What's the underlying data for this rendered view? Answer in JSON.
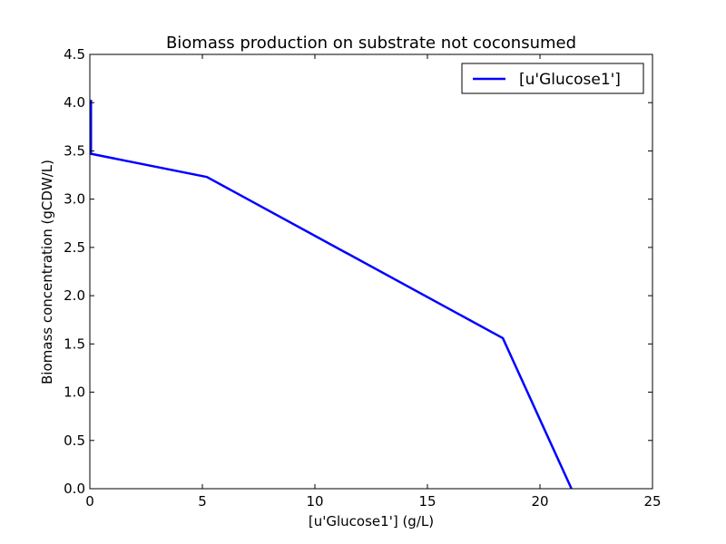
{
  "chart_data": {
    "type": "line",
    "title": "Biomass production on substrate not coconsumed",
    "xlabel": "[u'Glucose1'] (g/L)",
    "ylabel": "Biomass concentration (gCDW/L)",
    "xlim": [
      0,
      25
    ],
    "ylim": [
      0,
      4.5
    ],
    "x_ticks": [
      "0",
      "5",
      "10",
      "15",
      "20",
      "25"
    ],
    "y_ticks": [
      "0.0",
      "0.5",
      "1.0",
      "1.5",
      "2.0",
      "2.5",
      "3.0",
      "3.5",
      "4.0",
      "4.5"
    ],
    "grid": false,
    "legend_position": "top-right",
    "series": [
      {
        "name": "[u'Glucose1']",
        "color": "#0000ff",
        "x": [
          0.05,
          0.05,
          0.05,
          5.2,
          18.35,
          21.4
        ],
        "y": [
          4.03,
          3.55,
          3.47,
          3.23,
          1.56,
          0.0
        ]
      }
    ]
  }
}
